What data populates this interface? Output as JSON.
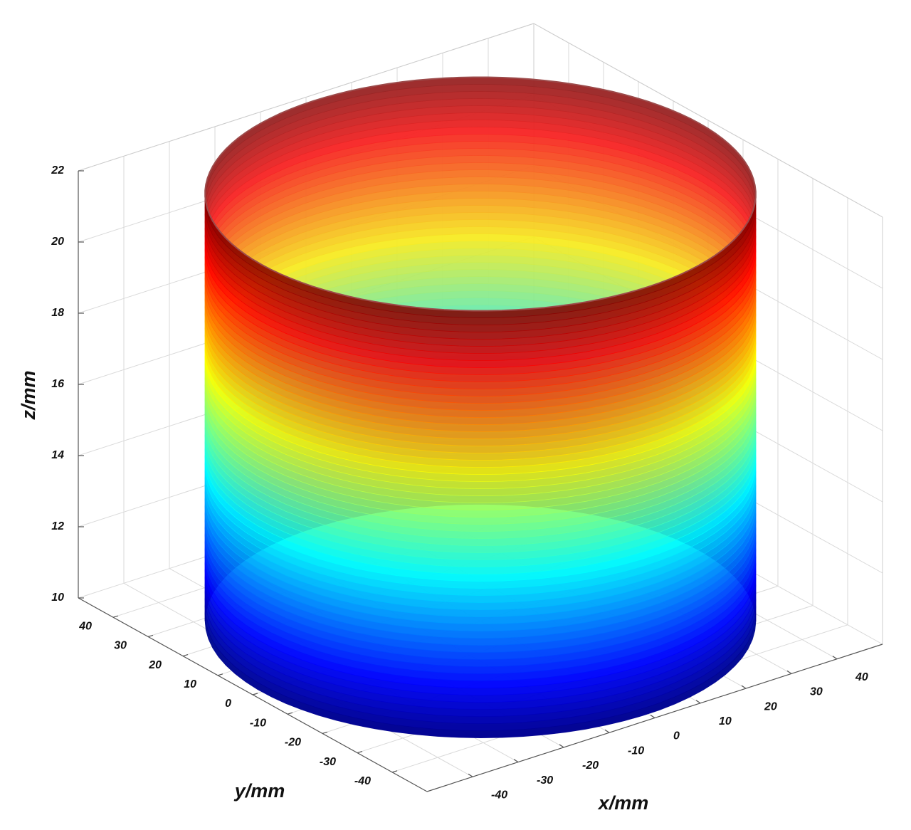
{
  "chart_data": {
    "type": "surface",
    "xlabel": "x/mm",
    "ylabel": "y/mm",
    "zlabel": "z/mm",
    "xlim": [
      -50,
      50
    ],
    "ylim": [
      -50,
      50
    ],
    "zlim": [
      10,
      22
    ],
    "xticks": [
      -40,
      -30,
      -20,
      -10,
      0,
      10,
      20,
      30,
      40
    ],
    "yticks": [
      -40,
      -30,
      -20,
      -10,
      0,
      10,
      20,
      30,
      40
    ],
    "zticks": [
      10,
      12,
      14,
      16,
      18,
      20,
      22
    ],
    "grid": true,
    "surface": {
      "radius": 48,
      "z": [
        10,
        22
      ],
      "colormap": "jet"
    }
  }
}
